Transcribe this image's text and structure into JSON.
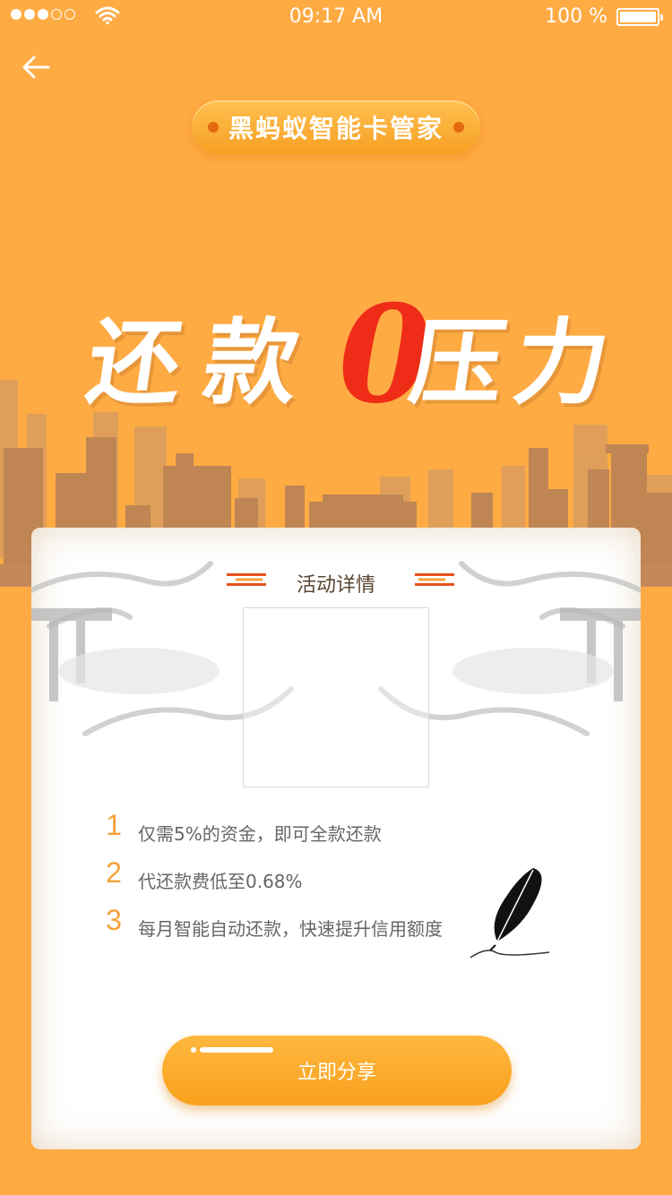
{
  "status_bar": {
    "time": "09:17 AM",
    "battery": "100 %",
    "icons": [
      "signal-dots",
      "wifi-icon",
      "battery-icon"
    ]
  },
  "nav": {
    "back_icon": "arrow-left-icon"
  },
  "header": {
    "brand_title": "黑蚂蚁智能卡管家"
  },
  "hero": {
    "chars": [
      "还",
      "款",
      "压",
      "力"
    ],
    "zero": "0",
    "colors": {
      "text": "#FFFFFF",
      "zero": "#EE2C18"
    }
  },
  "card": {
    "section_title": "活动详情",
    "features": [
      {
        "number": "1",
        "text": "仅需5%的资金，即可全款还款"
      },
      {
        "number": "2",
        "text": "代还款费低至0.68%"
      },
      {
        "number": "3",
        "text": "每月智能自动还款，快速提升信用额度"
      }
    ],
    "share_button": "立即分享"
  },
  "colors": {
    "background": "#FFAB43",
    "skyline": "#C58A57",
    "accent": "#F5A23A",
    "deco_red": "#E8521E"
  }
}
